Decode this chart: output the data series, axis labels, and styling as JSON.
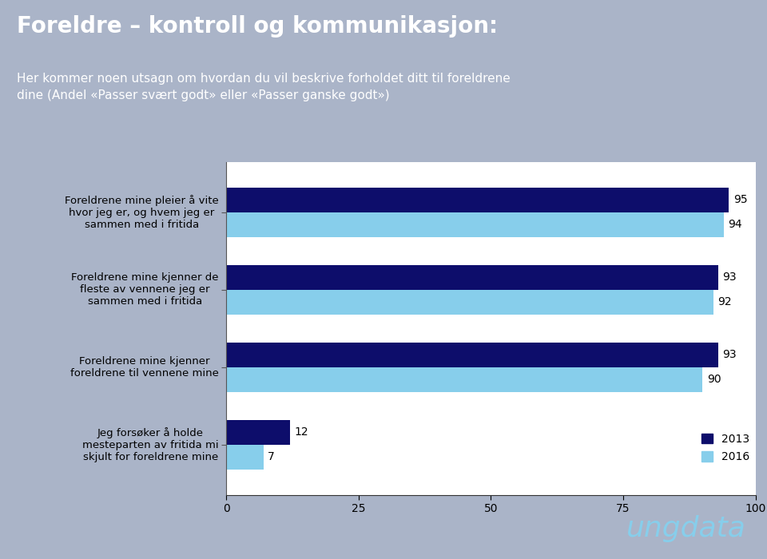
{
  "title_line1": "Foreldre – kontroll og kommunikasjon:",
  "title_line2": "Her kommer noen utsagn om hvordan du vil beskrive forholdet ditt til foreldrene\ndine (Andel «Passer svært godt» eller «Passer ganske godt»)",
  "categories": [
    "Foreldrene mine pleier å vite\nhvor jeg er, og hvem jeg er\nsammen med i fritida",
    "Foreldrene mine kjenner de\nfleste av vennene jeg er\nsammen med i fritida",
    "Foreldrene mine kjenner\nforeldrene til vennene mine",
    "Jeg forsøker å holde\nmesteparten av fritida mi\nskjult for foreldrene mine"
  ],
  "values_2013": [
    95,
    93,
    93,
    12
  ],
  "values_2016": [
    94,
    92,
    90,
    7
  ],
  "color_2013": "#0d0d6b",
  "color_2016": "#87CEEB",
  "header_bg": "#8899bb",
  "left_panel_bg": "#aab4c8",
  "chart_bg": "#ffffff",
  "xlim": [
    0,
    100
  ],
  "xticks": [
    0,
    25,
    50,
    75,
    100
  ],
  "legend_2013": "2013",
  "legend_2016": "2016",
  "bar_height": 0.32,
  "value_fontsize": 10,
  "label_fontsize": 9.5,
  "tick_fontsize": 10,
  "header_title_fontsize": 20,
  "header_subtitle_fontsize": 11
}
